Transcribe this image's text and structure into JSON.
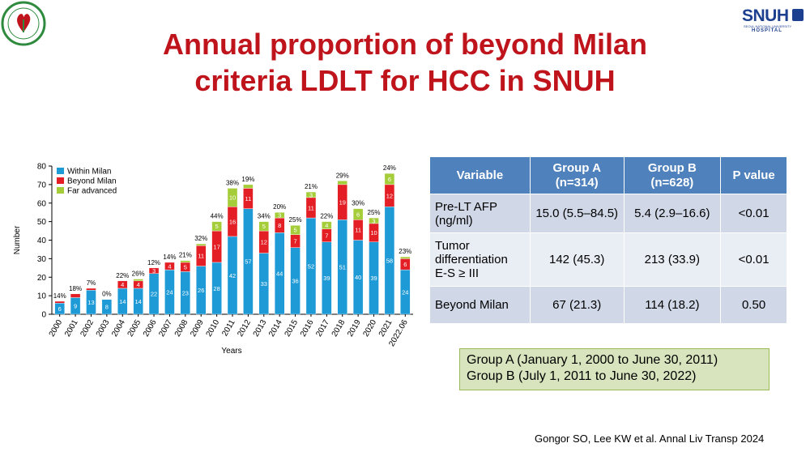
{
  "title": {
    "line1": "Annual proportion of beyond Milan",
    "line2": "criteria LDLT for HCC in SNUH"
  },
  "logos": {
    "left": {
      "icon": "society-seal-icon",
      "colors": {
        "ring": "#2e8b3e",
        "center": "#c0141c"
      }
    },
    "right": {
      "text": "SNUH",
      "sub1": "SEOUL NATIONAL UNIVERSITY",
      "sub2": "HOSPITAL",
      "color": "#1d3f8f"
    }
  },
  "chart_data": {
    "type": "bar",
    "stacked": true,
    "categories": [
      "2000",
      "2001",
      "2002",
      "2003",
      "2004",
      "2005",
      "2006",
      "2007",
      "2008",
      "2009",
      "2010",
      "2011",
      "2012",
      "2013",
      "2014",
      "2015",
      "2016",
      "2017",
      "2018",
      "2019",
      "2020",
      "2021",
      "2022.06"
    ],
    "series": [
      {
        "name": "Within Milan",
        "color": "#1e9ad6",
        "values": [
          6,
          9,
          13,
          8,
          14,
          14,
          22,
          24,
          23,
          26,
          28,
          42,
          57,
          33,
          44,
          36,
          52,
          39,
          51,
          40,
          39,
          58,
          24
        ]
      },
      {
        "name": "Beyond Milan",
        "color": "#e31e24",
        "values": [
          1,
          2,
          1,
          0,
          4,
          4,
          3,
          4,
          5,
          11,
          17,
          16,
          11,
          12,
          8,
          7,
          11,
          7,
          19,
          11,
          10,
          12,
          6
        ]
      },
      {
        "name": "Far advanced",
        "color": "#a5cd39",
        "values": [
          0,
          0,
          0,
          0,
          0,
          1,
          0,
          0,
          1,
          1,
          5,
          10,
          2,
          5,
          3,
          5,
          3,
          4,
          2,
          6,
          3,
          6,
          1
        ]
      }
    ],
    "segment_labels": [
      [
        "6",
        "9",
        "13",
        "8",
        "14",
        "14",
        "22",
        "24",
        "23",
        "26",
        "28",
        "42",
        "57",
        "33",
        "44",
        "36",
        "52",
        "39",
        "51",
        "40",
        "39",
        "58",
        "24"
      ],
      [
        "",
        "",
        "",
        "",
        "4",
        "4",
        "3",
        "4",
        "5",
        "11",
        "17",
        "16",
        "11",
        "12",
        "8",
        "7",
        "11",
        "7",
        "19",
        "11",
        "10",
        "12",
        "6"
      ],
      [
        "",
        "",
        "",
        "",
        "",
        "",
        "",
        "",
        "",
        "",
        "5",
        "10",
        "",
        "5",
        "3",
        "5",
        "3",
        "4",
        "",
        "6",
        "3",
        "6",
        ""
      ]
    ],
    "top_labels": [
      "14%",
      "18%",
      "7%",
      "0%",
      "22%",
      "26%",
      "12%",
      "14%",
      "21%",
      "32%",
      "44%",
      "38%",
      "19%",
      "34%",
      "20%",
      "25%",
      "21%",
      "22%",
      "29%",
      "30%",
      "25%",
      "24%",
      "23%"
    ],
    "xlabel": "Years",
    "ylabel": "Number",
    "ylim": [
      0,
      80
    ],
    "yticks": [
      0,
      10,
      20,
      30,
      40,
      50,
      60,
      70,
      80
    ],
    "grid": false,
    "legend_position": "top-left"
  },
  "table": {
    "headers": [
      "Variable",
      "Group A\n(n=314)",
      "Group B\n(n=628)",
      "P value"
    ],
    "rows": [
      [
        "Pre-LT AFP\n(ng/ml)",
        "15.0 (5.5–84.5)",
        "5.4 (2.9–16.6)",
        "<0.01"
      ],
      [
        "Tumor\ndifferentiation\nE-S ≥ III",
        "142 (45.3)",
        "213 (33.9)",
        "<0.01"
      ],
      [
        "Beyond Milan",
        "67 (21.3)",
        "114 (18.2)",
        "0.50"
      ]
    ],
    "colors": {
      "header": "#4f81bd",
      "row_dark": "#d0d8e8",
      "row_light": "#e9edf4"
    }
  },
  "groups": {
    "line1": "Group A (January 1, 2000 to June 30, 2011)",
    "line2": "Group B (July 1, 2011 to June 30, 2022)"
  },
  "citation": "Gongor SO, Lee KW et al. Annal Liv Transp 2024"
}
